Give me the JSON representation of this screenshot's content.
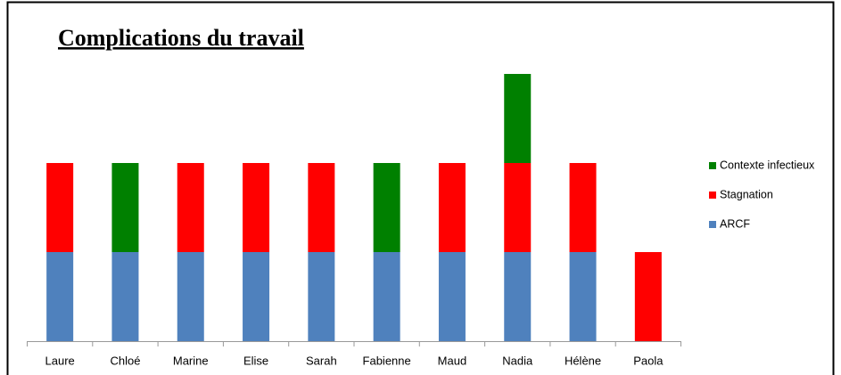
{
  "chart_data": {
    "type": "stacked_bar",
    "title": "Complications du travail",
    "categories": [
      "Laure",
      "Chloé",
      "Marine",
      "Elise",
      "Sarah",
      "Fabienne",
      "Maud",
      "Nadia",
      "Hélène",
      "Paola"
    ],
    "series": [
      {
        "name": "ARCF",
        "color": "#4f81bd",
        "values": [
          1,
          1,
          1,
          1,
          1,
          1,
          1,
          1,
          1,
          0
        ]
      },
      {
        "name": "Stagnation",
        "color": "#ff0000",
        "values": [
          1,
          0,
          1,
          1,
          1,
          0,
          1,
          1,
          1,
          1
        ]
      },
      {
        "name": "Contexte infectieux",
        "color": "#008000",
        "values": [
          0,
          1,
          0,
          0,
          0,
          1,
          0,
          1,
          0,
          0
        ]
      }
    ],
    "ylim": [
      0,
      3
    ],
    "legend": "right"
  }
}
